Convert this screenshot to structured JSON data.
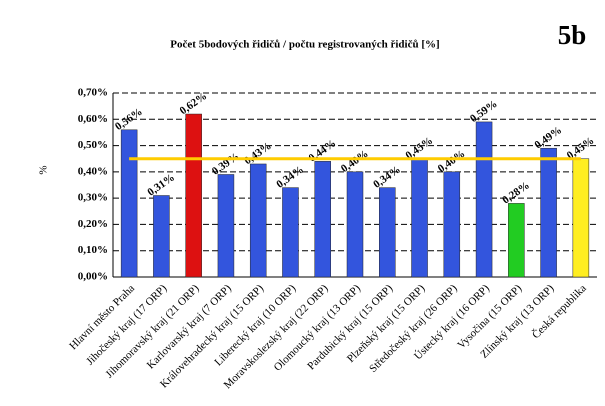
{
  "chart_data": {
    "type": "bar",
    "title": "Počet 5bodových řidičů / počtu registrovaných řidičů [%]",
    "badge": "5b",
    "y_label": "%",
    "categories": [
      "Hlavní město Praha",
      "Jihočeský kraj (17 ORP)",
      "Jihomoravský kraj (21 ORP)",
      "Karlovarský kraj (7 ORP)",
      "Královehradecký kraj (15 ORP)",
      "Liberecký kraj (10 ORP)",
      "Moravskoslezský kraj (22 ORP)",
      "Olomoucký kraj (13 ORP)",
      "Pardubický kraj (15 ORP)",
      "Plzeňský kraj (15 ORP)",
      "Středočeský kraj (26 ORP)",
      "Ústecký kraj (16 ORP)",
      "Vysočina (15 ORP)",
      "Zlínský kraj (13 ORP)",
      "Česká republika"
    ],
    "values": [
      0.56,
      0.31,
      0.62,
      0.39,
      0.43,
      0.34,
      0.44,
      0.4,
      0.34,
      0.45,
      0.4,
      0.59,
      0.28,
      0.49,
      0.45
    ],
    "value_labels": [
      "0,56%",
      "0,31%",
      "0,62%",
      "0,39%",
      "0,43%",
      "0,34%",
      "0,44%",
      "0,40%",
      "0,34%",
      "0,45%",
      "0,40%",
      "0,59%",
      "0,28%",
      "0,49%",
      "0,45%"
    ],
    "colors": [
      "#3355dd",
      "#3355dd",
      "#dd1111",
      "#3355dd",
      "#3355dd",
      "#3355dd",
      "#3355dd",
      "#3355dd",
      "#3355dd",
      "#3355dd",
      "#3355dd",
      "#3355dd",
      "#22cc22",
      "#3355dd",
      "#ffee22"
    ],
    "average_line": {
      "value": 0.45,
      "color": "#ffcc00"
    },
    "ylim": [
      0,
      0.7
    ],
    "yticks": [
      {
        "value": 0,
        "label": "0,00%"
      },
      {
        "value": 0.1,
        "label": "0,10%"
      },
      {
        "value": 0.2,
        "label": "0,20%"
      },
      {
        "value": 0.3,
        "label": "0,30%"
      },
      {
        "value": 0.4,
        "label": "0,40%"
      },
      {
        "value": 0.5,
        "label": "0,50%"
      },
      {
        "value": 0.6,
        "label": "0,60%"
      },
      {
        "value": 0.7,
        "label": "0,70%"
      }
    ],
    "grid": true
  }
}
